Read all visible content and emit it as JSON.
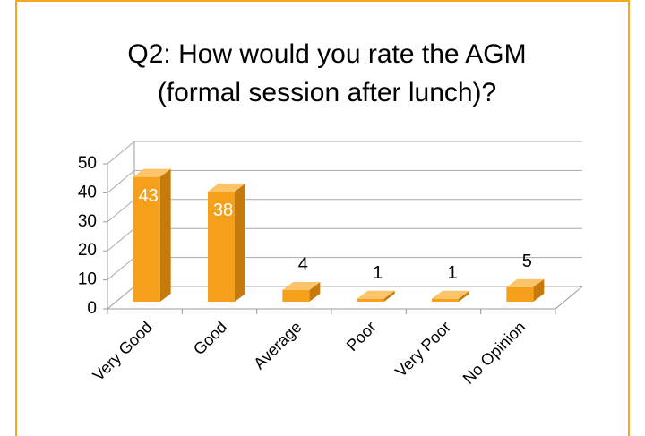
{
  "chart_data": {
    "type": "bar3d",
    "title_lines": [
      "Q2: How would you rate the AGM",
      "(formal session after lunch)?"
    ],
    "categories": [
      "Very Good",
      "Good",
      "Average",
      "Poor",
      "Very Poor",
      "No Opinion"
    ],
    "values": [
      43,
      38,
      4,
      1,
      1,
      5
    ],
    "color": "#f5a01a",
    "ylim": [
      0,
      50
    ],
    "yticks": [
      0,
      10,
      20,
      30,
      40,
      50
    ],
    "grid": true
  }
}
